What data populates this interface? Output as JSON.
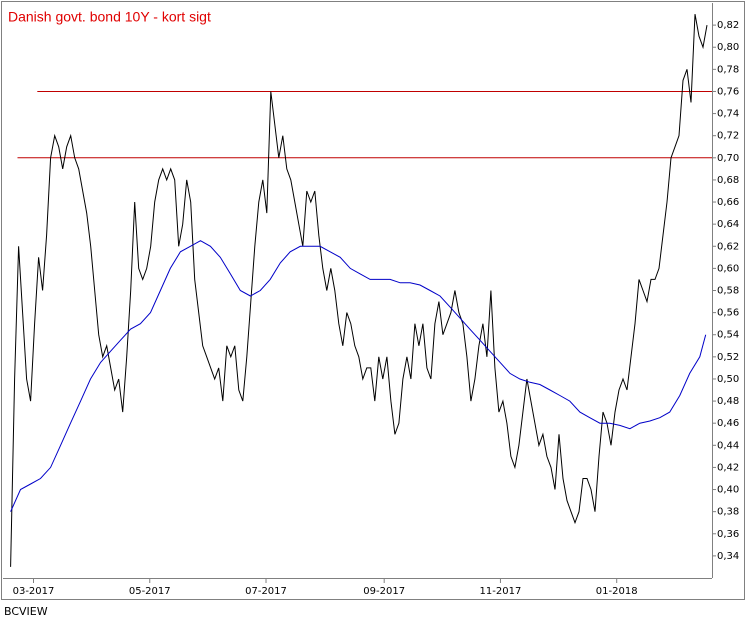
{
  "chart_data": {
    "type": "line",
    "title": "Danish govt. bond 10Y - kort sigt",
    "source": "BCVIEW",
    "xlim": [
      -16,
      356
    ],
    "ylim": [
      0.32,
      0.84
    ],
    "xticks": [
      {
        "value": 0,
        "label": "03-2017"
      },
      {
        "value": 61,
        "label": "05-2017"
      },
      {
        "value": 122,
        "label": "07-2017"
      },
      {
        "value": 184,
        "label": "09-2017"
      },
      {
        "value": 245,
        "label": "11-2017"
      },
      {
        "value": 306,
        "label": "01-2018"
      }
    ],
    "yticks": [
      {
        "value": 0.34,
        "label": "0,34"
      },
      {
        "value": 0.36,
        "label": "0,36"
      },
      {
        "value": 0.38,
        "label": "0,38"
      },
      {
        "value": 0.4,
        "label": "0,40"
      },
      {
        "value": 0.42,
        "label": "0,42"
      },
      {
        "value": 0.44,
        "label": "0,44"
      },
      {
        "value": 0.46,
        "label": "0,46"
      },
      {
        "value": 0.48,
        "label": "0,48"
      },
      {
        "value": 0.5,
        "label": "0,50"
      },
      {
        "value": 0.52,
        "label": "0,52"
      },
      {
        "value": 0.54,
        "label": "0,54"
      },
      {
        "value": 0.56,
        "label": "0,56"
      },
      {
        "value": 0.58,
        "label": "0,58"
      },
      {
        "value": 0.6,
        "label": "0,60"
      },
      {
        "value": 0.62,
        "label": "0,62"
      },
      {
        "value": 0.64,
        "label": "0,64"
      },
      {
        "value": 0.66,
        "label": "0,66"
      },
      {
        "value": 0.68,
        "label": "0,68"
      },
      {
        "value": 0.7,
        "label": "0,70"
      },
      {
        "value": 0.72,
        "label": "0,72"
      },
      {
        "value": 0.74,
        "label": "0,74"
      },
      {
        "value": 0.76,
        "label": "0,76"
      },
      {
        "value": 0.78,
        "label": "0,78"
      },
      {
        "value": 0.8,
        "label": "0,80"
      },
      {
        "value": 0.82,
        "label": "0,82"
      }
    ],
    "hlines": [
      {
        "y": 0.76,
        "x": [
          2,
          356
        ],
        "color": "#c00000"
      },
      {
        "y": 0.7,
        "x": [
          -8.4,
          356
        ],
        "color": "#c00000"
      }
    ],
    "series": [
      {
        "color": "#000000",
        "x": [
          -12,
          -9.9,
          -7.8,
          -5.7,
          -3.6,
          -1.5,
          0.6,
          2.7,
          4.8,
          6.9,
          9,
          11.1,
          13.2,
          15.3,
          17.4,
          19.5,
          21.6,
          23.7,
          25.8,
          27.9,
          30,
          32.1,
          34.2,
          36.3,
          38.4,
          40.5,
          42.6,
          44.7,
          46.8,
          48.9,
          51,
          53.1,
          55.2,
          57.3,
          59.4,
          61.5,
          63.6,
          65.7,
          67.8,
          69.9,
          72,
          74.1,
          76.2,
          78.3,
          80.4,
          82.5,
          84.6,
          86.7,
          88.8,
          90.9,
          93,
          95.1,
          97.2,
          99.3,
          101.4,
          103.5,
          105.6,
          107.7,
          109.8,
          111.9,
          114,
          116.1,
          118.2,
          120.3,
          122.4,
          124.5,
          126.6,
          128.7,
          130.8,
          132.9,
          135,
          137.1,
          139.2,
          141.3,
          143.4,
          145.5,
          147.6,
          149.7,
          151.8,
          153.9,
          156,
          158.1,
          160.2,
          162.3,
          164.4,
          166.5,
          168.6,
          170.7,
          172.8,
          174.9,
          177,
          179.1,
          181.2,
          183.3,
          185.4,
          187.5,
          189.6,
          191.7,
          193.8,
          195.9,
          198,
          200.1,
          202.2,
          204.3,
          206.4,
          208.5,
          210.6,
          212.7,
          214.8,
          216.9,
          219,
          221.1,
          223.2,
          225.3,
          227.4,
          229.5,
          231.6,
          233.7,
          235.8,
          237.9,
          240,
          242.1,
          244.2,
          246.3,
          248.4,
          250.5,
          252.6,
          254.7,
          256.8,
          258.9,
          261,
          263.1,
          265.2,
          267.3,
          269.4,
          271.5,
          273.6,
          275.7,
          277.8,
          279.9,
          282,
          284.1,
          286.2,
          288.3,
          290.4,
          292.5,
          294.6,
          296.7,
          298.8,
          300.9,
          303,
          305.1,
          307.2,
          309.3,
          311.4,
          313.5,
          315.6,
          317.7,
          319.8,
          321.9,
          324,
          326.1,
          328.2,
          330.3,
          332.4,
          334.5,
          336.6,
          338.7,
          340.8,
          342.9,
          345,
          347.1,
          349.2,
          351.3,
          353.4
        ],
        "values": [
          0.33,
          0.5,
          0.62,
          0.56,
          0.5,
          0.48,
          0.55,
          0.61,
          0.58,
          0.63,
          0.7,
          0.72,
          0.71,
          0.69,
          0.71,
          0.72,
          0.7,
          0.69,
          0.67,
          0.65,
          0.62,
          0.58,
          0.54,
          0.52,
          0.53,
          0.51,
          0.49,
          0.5,
          0.47,
          0.52,
          0.58,
          0.66,
          0.6,
          0.59,
          0.6,
          0.62,
          0.66,
          0.68,
          0.69,
          0.68,
          0.69,
          0.68,
          0.62,
          0.64,
          0.68,
          0.66,
          0.59,
          0.56,
          0.53,
          0.52,
          0.51,
          0.5,
          0.51,
          0.48,
          0.53,
          0.52,
          0.53,
          0.49,
          0.48,
          0.52,
          0.57,
          0.62,
          0.66,
          0.68,
          0.65,
          0.76,
          0.73,
          0.7,
          0.72,
          0.69,
          0.68,
          0.66,
          0.64,
          0.62,
          0.67,
          0.66,
          0.67,
          0.63,
          0.6,
          0.58,
          0.6,
          0.58,
          0.55,
          0.53,
          0.56,
          0.55,
          0.53,
          0.52,
          0.5,
          0.51,
          0.51,
          0.48,
          0.52,
          0.5,
          0.52,
          0.48,
          0.45,
          0.46,
          0.5,
          0.52,
          0.5,
          0.55,
          0.53,
          0.55,
          0.51,
          0.5,
          0.55,
          0.57,
          0.54,
          0.55,
          0.56,
          0.58,
          0.56,
          0.55,
          0.52,
          0.48,
          0.5,
          0.53,
          0.55,
          0.52,
          0.58,
          0.51,
          0.47,
          0.48,
          0.46,
          0.43,
          0.42,
          0.44,
          0.47,
          0.5,
          0.48,
          0.46,
          0.44,
          0.45,
          0.43,
          0.42,
          0.4,
          0.45,
          0.41,
          0.39,
          0.38,
          0.37,
          0.38,
          0.41,
          0.41,
          0.4,
          0.38,
          0.43,
          0.47,
          0.46,
          0.44,
          0.47,
          0.49,
          0.5,
          0.49,
          0.52,
          0.55,
          0.59,
          0.58,
          0.57,
          0.59,
          0.59,
          0.6,
          0.63,
          0.66,
          0.7,
          0.71,
          0.72,
          0.77,
          0.78,
          0.75,
          0.83,
          0.81,
          0.8,
          0.82
        ]
      },
      {
        "color": "#0000c8",
        "x": [
          -12,
          -6.8,
          -1.5,
          3.7,
          9,
          14.2,
          19.4,
          24.7,
          29.9,
          35.2,
          40.4,
          45.6,
          50.9,
          56.1,
          61.4,
          66.6,
          71.8,
          77.1,
          82.3,
          87.6,
          92.8,
          98,
          103.3,
          108.5,
          113.8,
          119,
          124.2,
          129.5,
          134.7,
          140,
          145.2,
          150.4,
          155.7,
          160.9,
          166.2,
          171.4,
          176.6,
          181.9,
          187.1,
          192.4,
          197.6,
          202.8,
          208.1,
          213.3,
          218.6,
          223.8,
          229,
          234.3,
          239.5,
          244.8,
          250,
          255.2,
          260.5,
          265.7,
          271,
          276.2,
          281.4,
          286.7,
          291.9,
          297.2,
          302.4,
          307.6,
          312.9,
          318.1,
          323.4,
          328.6,
          333.8,
          339.1,
          344.3,
          349.6,
          352.7
        ],
        "values": [
          0.38,
          0.4,
          0.405,
          0.41,
          0.42,
          0.44,
          0.46,
          0.48,
          0.5,
          0.515,
          0.525,
          0.535,
          0.545,
          0.55,
          0.56,
          0.58,
          0.6,
          0.615,
          0.62,
          0.625,
          0.62,
          0.61,
          0.595,
          0.58,
          0.575,
          0.58,
          0.59,
          0.605,
          0.615,
          0.62,
          0.62,
          0.62,
          0.615,
          0.61,
          0.6,
          0.595,
          0.59,
          0.59,
          0.59,
          0.587,
          0.587,
          0.585,
          0.58,
          0.575,
          0.565,
          0.555,
          0.545,
          0.535,
          0.525,
          0.515,
          0.505,
          0.5,
          0.497,
          0.495,
          0.49,
          0.485,
          0.48,
          0.47,
          0.465,
          0.46,
          0.46,
          0.458,
          0.455,
          0.46,
          0.462,
          0.465,
          0.47,
          0.485,
          0.505,
          0.52,
          0.54
        ]
      }
    ]
  }
}
